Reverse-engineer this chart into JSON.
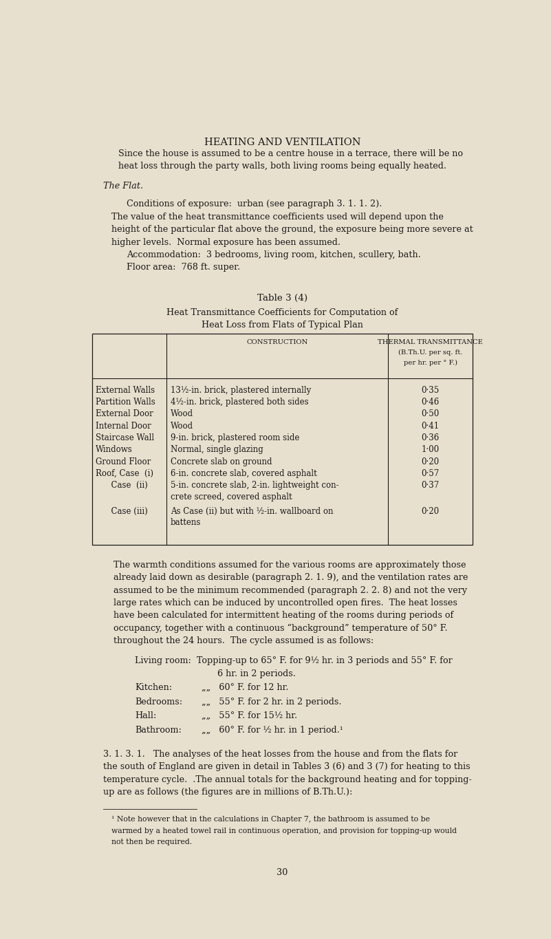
{
  "bg_color": "#e8e0ce",
  "text_color": "#1a1a1a",
  "page_width": 8.01,
  "page_height": 13.65,
  "title": "HEATING AND VENTILATION",
  "para1": "Since the house is assumed to be a centre house in a terrace, there will be no\nheat loss through the party walls, both living rooms being equally heated.",
  "flat_heading": "The Flat.",
  "para2a": "Conditions of exposure:  urban (see paragraph 3. 1. 1. 2).",
  "para2b": "The value of the heat transmittance coefficients used will depend upon the\nheight of the particular flat above the ground, the exposure being more severe at\nhigher levels.  Normal exposure has been assumed.",
  "para2c": "Accommodation:  3 bedrooms, living room, kitchen, scullery, bath.",
  "para2d": "Floor area:  768 ft. super.",
  "table_title": "Table 3 (4)",
  "table_subtitle1": "Heat Transmittance Coefficients for Computation of",
  "table_subtitle2": "Heat Loss from Flats of Typical Plan",
  "col_header1": "CONSTRUCTION",
  "col_header2_line1": "THERMAL TRANSMITTANCE",
  "col_header2_line2": "(B.Th.U. per sq. ft.",
  "col_header2_line3": "per hr. per ° F.)",
  "table_rows": [
    [
      "External Walls",
      "13½-in. brick, plastered internally",
      "0·35"
    ],
    [
      "Partition Walls",
      "4½-in. brick, plastered both sides",
      "0·46"
    ],
    [
      "External Door",
      "Wood",
      "0·50"
    ],
    [
      "Internal Door",
      "Wood",
      "0·41"
    ],
    [
      "Staircase Wall",
      "9-in. brick, plastered room side",
      "0·36"
    ],
    [
      "Windows",
      "Normal, single glazing",
      "1·00"
    ],
    [
      "Ground Floor",
      "Concrete slab on ground",
      "0·20"
    ],
    [
      "Roof, Case  (i)",
      "6-in. concrete slab, covered asphalt",
      "0·57"
    ],
    [
      "      Case  (ii)",
      "5-in. concrete slab, 2-in. lightweight con-\ncrete screed, covered asphalt",
      "0·37"
    ],
    [
      "      Case (iii)",
      "As Case (ii) but with ½-in. wallboard on\nbattens",
      "0·20"
    ]
  ],
  "para3": "The warmth conditions assumed for the various rooms are approximately those\nalready laid down as desirable (paragraph 2. 1. 9), and the ventilation rates are\nassumed to be the minimum recommended (paragraph 2. 2. 8) and not the very\nlarge rates which can be induced by uncontrolled open fires.  The heat losses\nhave been calculated for intermittent heating of the rooms during periods of\noccupancy, together with a continuous “background” temperature of 50° F.\nthroughout the 24 hours.  The cycle assumed is as follows:",
  "living_line1": "Living room:  Topping-up to 65° F. for 9½ hr. in 3 periods and 55° F. for",
  "living_line2": "                              6 hr. in 2 periods.",
  "cycle_rows": [
    [
      "Kitchen:",
      "„„   60° F. for 12 hr."
    ],
    [
      "Bedrooms:",
      "„„   55° F. for 2 hr. in 2 periods."
    ],
    [
      "Hall:",
      "„„   55° F. for 15½ hr."
    ],
    [
      "Bathroom:",
      "„„   60° F. for ½ hr. in 1 period.¹"
    ]
  ],
  "para4": "3. 1. 3. 1.   The analyses of the heat losses from the house and from the flats for\nthe south of England are given in detail in Tables 3 (6) and 3 (7) for heating to this\ntemperature cycle.  .The annual totals for the background heating and for topping-\nup are as follows (the figures are in millions of B.Th.U.):",
  "footnote": "¹ Note however that in the calculations in Chapter 7, the bathroom is assumed to be\nwarmed by a heated towel rail in continuous operation, and provision for topping-up would\nnot then be required.",
  "page_number": "30"
}
